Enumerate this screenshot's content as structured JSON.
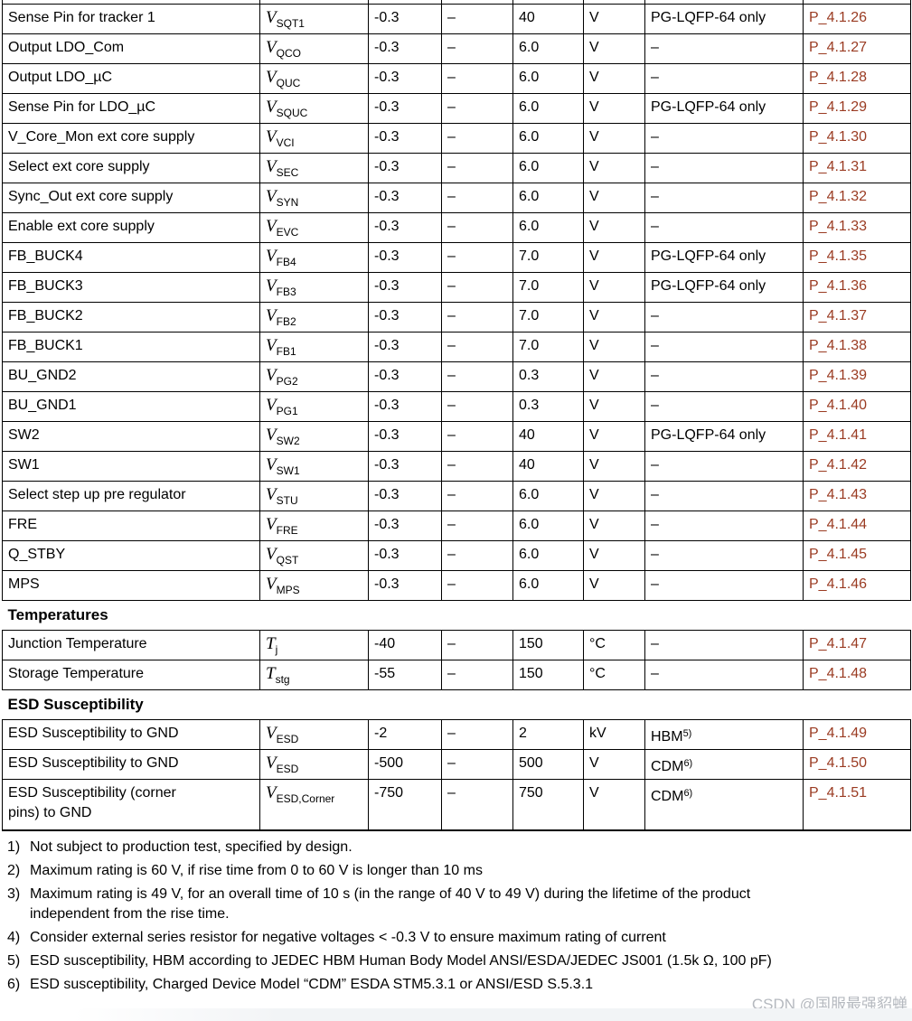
{
  "table": {
    "ref_color": "#9a3b22",
    "rows": [
      {
        "type": "sliver"
      },
      {
        "type": "data",
        "parameter": [
          "Sense Pin for tracker 1"
        ],
        "symbol": {
          "base": "V",
          "sub": "SQT1"
        },
        "min": "-0.3",
        "typ": "–",
        "max": "40",
        "unit": "V",
        "note": {
          "text": "PG-LQFP-64 only",
          "sup": ""
        },
        "ref": "P_4.1.26"
      },
      {
        "type": "data",
        "parameter": [
          "Output LDO_Com"
        ],
        "symbol": {
          "base": "V",
          "sub": "QCO"
        },
        "min": "-0.3",
        "typ": "–",
        "max": "6.0",
        "unit": "V",
        "note": {
          "text": "–",
          "sup": ""
        },
        "ref": "P_4.1.27"
      },
      {
        "type": "data",
        "parameter": [
          "Output LDO_µC"
        ],
        "symbol": {
          "base": "V",
          "sub": "QUC"
        },
        "min": "-0.3",
        "typ": "–",
        "max": "6.0",
        "unit": "V",
        "note": {
          "text": "–",
          "sup": ""
        },
        "ref": "P_4.1.28"
      },
      {
        "type": "data",
        "parameter": [
          "Sense Pin for LDO_µC"
        ],
        "symbol": {
          "base": "V",
          "sub": "SQUC"
        },
        "min": "-0.3",
        "typ": "–",
        "max": "6.0",
        "unit": "V",
        "note": {
          "text": "PG-LQFP-64 only",
          "sup": ""
        },
        "ref": "P_4.1.29"
      },
      {
        "type": "data",
        "parameter": [
          "V_Core_Mon ext core supply"
        ],
        "symbol": {
          "base": "V",
          "sub": "VCI"
        },
        "min": "-0.3",
        "typ": "–",
        "max": "6.0",
        "unit": "V",
        "note": {
          "text": "–",
          "sup": ""
        },
        "ref": "P_4.1.30"
      },
      {
        "type": "data",
        "parameter": [
          "Select ext core supply"
        ],
        "symbol": {
          "base": "V",
          "sub": "SEC"
        },
        "min": "-0.3",
        "typ": "–",
        "max": "6.0",
        "unit": "V",
        "note": {
          "text": "–",
          "sup": ""
        },
        "ref": "P_4.1.31"
      },
      {
        "type": "data",
        "parameter": [
          "Sync_Out ext core supply"
        ],
        "symbol": {
          "base": "V",
          "sub": "SYN"
        },
        "min": "-0.3",
        "typ": "–",
        "max": "6.0",
        "unit": "V",
        "note": {
          "text": "–",
          "sup": ""
        },
        "ref": "P_4.1.32"
      },
      {
        "type": "data",
        "parameter": [
          "Enable ext core supply"
        ],
        "symbol": {
          "base": "V",
          "sub": "EVC"
        },
        "min": "-0.3",
        "typ": "–",
        "max": "6.0",
        "unit": "V",
        "note": {
          "text": "–",
          "sup": ""
        },
        "ref": "P_4.1.33"
      },
      {
        "type": "data",
        "parameter": [
          "FB_BUCK4"
        ],
        "symbol": {
          "base": "V",
          "sub": "FB4"
        },
        "min": "-0.3",
        "typ": "–",
        "max": "7.0",
        "unit": "V",
        "note": {
          "text": "PG-LQFP-64 only",
          "sup": ""
        },
        "ref": "P_4.1.35"
      },
      {
        "type": "data",
        "parameter": [
          "FB_BUCK3"
        ],
        "symbol": {
          "base": "V",
          "sub": "FB3"
        },
        "min": "-0.3",
        "typ": "–",
        "max": "7.0",
        "unit": "V",
        "note": {
          "text": "PG-LQFP-64 only",
          "sup": ""
        },
        "ref": "P_4.1.36"
      },
      {
        "type": "data",
        "parameter": [
          "FB_BUCK2"
        ],
        "symbol": {
          "base": "V",
          "sub": "FB2"
        },
        "min": "-0.3",
        "typ": "–",
        "max": "7.0",
        "unit": "V",
        "note": {
          "text": "–",
          "sup": ""
        },
        "ref": "P_4.1.37"
      },
      {
        "type": "data",
        "parameter": [
          "FB_BUCK1"
        ],
        "symbol": {
          "base": "V",
          "sub": "FB1"
        },
        "min": "-0.3",
        "typ": "–",
        "max": "7.0",
        "unit": "V",
        "note": {
          "text": "–",
          "sup": ""
        },
        "ref": "P_4.1.38"
      },
      {
        "type": "data",
        "parameter": [
          "BU_GND2"
        ],
        "symbol": {
          "base": "V",
          "sub": "PG2"
        },
        "min": "-0.3",
        "typ": "–",
        "max": "0.3",
        "unit": "V",
        "note": {
          "text": "–",
          "sup": ""
        },
        "ref": "P_4.1.39"
      },
      {
        "type": "data",
        "parameter": [
          "BU_GND1"
        ],
        "symbol": {
          "base": "V",
          "sub": "PG1"
        },
        "min": "-0.3",
        "typ": "–",
        "max": "0.3",
        "unit": "V",
        "note": {
          "text": "–",
          "sup": ""
        },
        "ref": "P_4.1.40"
      },
      {
        "type": "data",
        "parameter": [
          "SW2"
        ],
        "symbol": {
          "base": "V",
          "sub": "SW2"
        },
        "min": "-0.3",
        "typ": "–",
        "max": "40",
        "unit": "V",
        "note": {
          "text": "PG-LQFP-64 only",
          "sup": ""
        },
        "ref": "P_4.1.41"
      },
      {
        "type": "data",
        "parameter": [
          "SW1"
        ],
        "symbol": {
          "base": "V",
          "sub": "SW1"
        },
        "min": "-0.3",
        "typ": "–",
        "max": "40",
        "unit": "V",
        "note": {
          "text": "–",
          "sup": ""
        },
        "ref": "P_4.1.42"
      },
      {
        "type": "data",
        "parameter": [
          "Select step up pre regulator"
        ],
        "symbol": {
          "base": "V",
          "sub": "STU"
        },
        "min": "-0.3",
        "typ": "–",
        "max": "6.0",
        "unit": "V",
        "note": {
          "text": "–",
          "sup": ""
        },
        "ref": "P_4.1.43"
      },
      {
        "type": "data",
        "parameter": [
          "FRE"
        ],
        "symbol": {
          "base": "V",
          "sub": "FRE"
        },
        "min": "-0.3",
        "typ": "–",
        "max": "6.0",
        "unit": "V",
        "note": {
          "text": "–",
          "sup": ""
        },
        "ref": "P_4.1.44"
      },
      {
        "type": "data",
        "parameter": [
          "Q_STBY"
        ],
        "symbol": {
          "base": "V",
          "sub": "QST"
        },
        "min": "-0.3",
        "typ": "–",
        "max": "6.0",
        "unit": "V",
        "note": {
          "text": "–",
          "sup": ""
        },
        "ref": "P_4.1.45"
      },
      {
        "type": "data",
        "parameter": [
          "MPS"
        ],
        "symbol": {
          "base": "V",
          "sub": "MPS"
        },
        "min": "-0.3",
        "typ": "–",
        "max": "6.0",
        "unit": "V",
        "note": {
          "text": "–",
          "sup": ""
        },
        "ref": "P_4.1.46"
      },
      {
        "type": "section",
        "label": "Temperatures"
      },
      {
        "type": "data",
        "parameter": [
          "Junction Temperature"
        ],
        "symbol": {
          "base": "T",
          "sub": "j"
        },
        "min": "-40",
        "typ": "–",
        "max": "150",
        "unit": "°C",
        "note": {
          "text": "–",
          "sup": ""
        },
        "ref": "P_4.1.47"
      },
      {
        "type": "data",
        "parameter": [
          "Storage Temperature"
        ],
        "symbol": {
          "base": "T",
          "sub": "stg"
        },
        "min": "-55",
        "typ": "–",
        "max": "150",
        "unit": "°C",
        "note": {
          "text": "–",
          "sup": ""
        },
        "ref": "P_4.1.48"
      },
      {
        "type": "section",
        "label": "ESD Susceptibility"
      },
      {
        "type": "data",
        "parameter": [
          "ESD Susceptibility to GND"
        ],
        "symbol": {
          "base": "V",
          "sub": "ESD"
        },
        "min": "-2",
        "typ": "–",
        "max": "2",
        "unit": "kV",
        "note": {
          "text": "HBM",
          "sup": "5)"
        },
        "ref": "P_4.1.49"
      },
      {
        "type": "data",
        "parameter": [
          "ESD Susceptibility to GND"
        ],
        "symbol": {
          "base": "V",
          "sub": "ESD"
        },
        "min": "-500",
        "typ": "–",
        "max": "500",
        "unit": "V",
        "note": {
          "text": "CDM",
          "sup": "6)"
        },
        "ref": "P_4.1.50"
      },
      {
        "type": "data",
        "tall": true,
        "parameter": [
          "ESD Susceptibility (corner",
          "pins) to GND"
        ],
        "symbol": {
          "base": "V",
          "sub": "ESD,Corner"
        },
        "min": "-750",
        "typ": "–",
        "max": "750",
        "unit": "V",
        "note": {
          "text": "CDM",
          "sup": "6)"
        },
        "ref": "P_4.1.51"
      }
    ]
  },
  "footnotes": [
    {
      "num": "1)",
      "lines": [
        "Not subject to production test, specified by design."
      ]
    },
    {
      "num": "2)",
      "lines": [
        "Maximum rating is 60 V, if rise time from 0 to 60 V is longer than 10 ms"
      ]
    },
    {
      "num": "3)",
      "lines": [
        "Maximum rating is 49 V, for an overall time of 10 s (in the range of 40 V to 49 V) during the lifetime of the product",
        "independent from the rise time."
      ]
    },
    {
      "num": "4)",
      "lines": [
        "Consider external series resistor for negative voltages < -0.3 V to ensure maximum rating of current"
      ]
    },
    {
      "num": "5)",
      "lines": [
        "ESD susceptibility, HBM according to JEDEC HBM Human Body Model ANSI/ESDA/JEDEC JS001 (1.5k Ω, 100 pF)"
      ]
    },
    {
      "num": "6)",
      "lines": [
        "ESD susceptibility, Charged Device Model “CDM” ESDA STM5.3.1 or ANSI/ESD S.5.3.1"
      ]
    }
  ],
  "watermark": "CSDN @国服最强貂蝉"
}
